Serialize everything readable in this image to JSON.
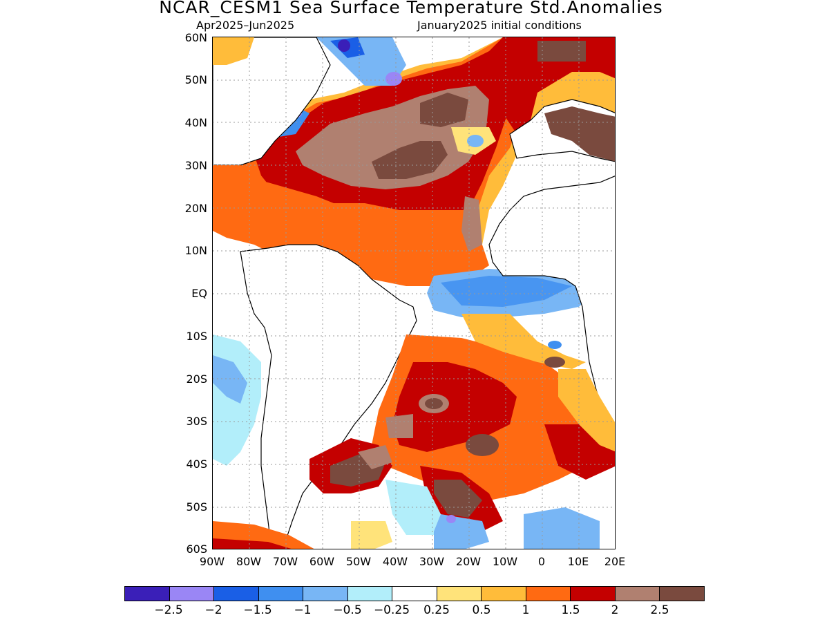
{
  "title": "NCAR_CESM1 Sea Surface Temperature Std.Anomalies",
  "subtitle_left": "Apr2025–Jun2025",
  "subtitle_right": "January2025 initial conditions",
  "lat_labels": [
    "60N",
    "50N",
    "40N",
    "30N",
    "20N",
    "10N",
    "EQ",
    "10S",
    "20S",
    "30S",
    "40S",
    "50S",
    "60S"
  ],
  "lon_labels": [
    "90W",
    "80W",
    "70W",
    "60W",
    "50W",
    "40W",
    "30W",
    "20W",
    "10W",
    "0",
    "10E",
    "20E"
  ],
  "colorbar": {
    "colors": [
      "#3a1fb8",
      "#9a86f5",
      "#1a5fe6",
      "#3f8ff0",
      "#78b6f5",
      "#b2eefa",
      "#ffffff",
      "#ffe37a",
      "#ffbc3a",
      "#ff6a12",
      "#c40000",
      "#b08070",
      "#7a4a3e"
    ],
    "labels": [
      "−2.5",
      "−2",
      "−1.5",
      "−1",
      "−0.5",
      "−0.25",
      "0.25",
      "0.5",
      "1",
      "1.5",
      "2",
      "2.5"
    ]
  }
}
